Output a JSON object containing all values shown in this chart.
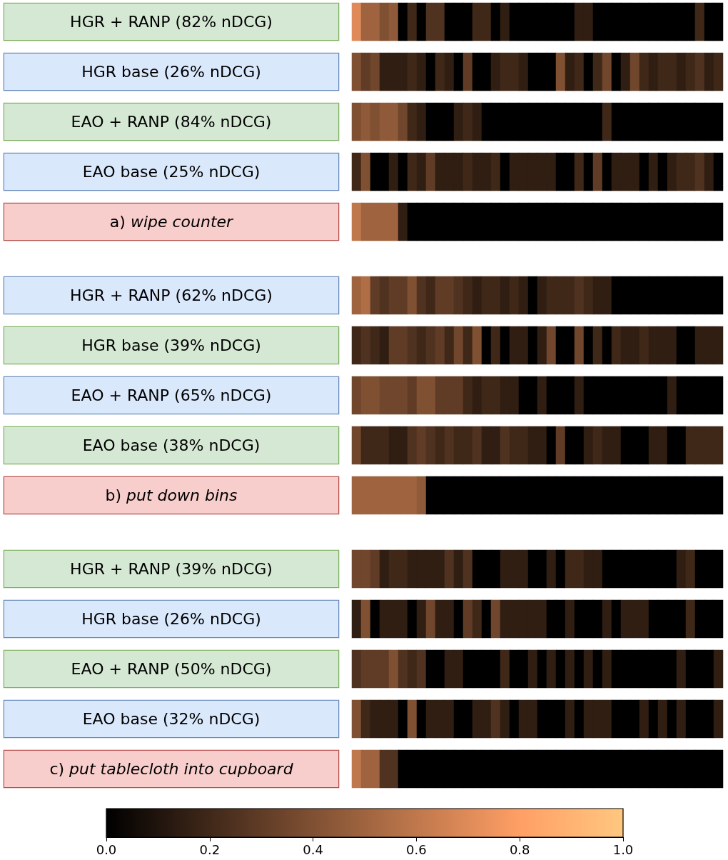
{
  "chart_data": {
    "type": "heatmap",
    "y_categories": [
      "HGR + RANP (82% nDCG)",
      "HGR base (26% nDCG)",
      "EAO + RANP (84% nDCG)",
      "EAO base (25% nDCG)",
      "a) wipe counter",
      "HGR + RANP (62% nDCG)",
      "HGR base (39% nDCG)",
      "EAO + RANP (65% nDCG)",
      "EAO base (38% nDCG)",
      "b) put down bins",
      "HGR + RANP (39% nDCG)",
      "HGR base (26% nDCG)",
      "EAO + RANP (50% nDCG)",
      "EAO base (32% nDCG)",
      "c) put tablecloth into cupboard"
    ],
    "categories": [
      null,
      null,
      null,
      null,
      null,
      null,
      null,
      null,
      null,
      null,
      null,
      null,
      null,
      null,
      null,
      null,
      null,
      null,
      null,
      null,
      null,
      null,
      null,
      null,
      null,
      null,
      null,
      null,
      null,
      null,
      null,
      null,
      null,
      null,
      null,
      null,
      null,
      null,
      null,
      null
    ],
    "clim": [
      0,
      1
    ],
    "cticks": [
      {
        "value": 0,
        "label": "0.0"
      },
      0.2,
      0.4,
      0.6,
      0.8,
      {
        "value": 1,
        "label": "1.0"
      }
    ],
    "cells": [
      [
        0.7,
        0.5,
        0.5,
        0.4,
        0.45,
        0,
        0.2,
        0,
        0.25,
        0.25,
        0,
        0,
        0,
        0.2,
        0.2,
        0,
        0.15,
        0,
        0,
        0,
        0,
        0,
        0,
        0,
        0.15,
        0.15,
        0,
        0,
        0,
        0,
        0,
        0,
        0,
        0,
        0,
        0,
        0,
        0.2,
        0,
        0
      ],
      [
        0.4,
        0.3,
        0.35,
        0.15,
        0.15,
        0.15,
        0.2,
        0.15,
        0,
        0.2,
        0.15,
        0,
        0.3,
        0,
        0,
        0.15,
        0.2,
        0.2,
        0.15,
        0,
        0,
        0,
        0.4,
        0.15,
        0.2,
        0,
        0.2,
        0.35,
        0,
        0.15,
        0.35,
        0.2,
        0.15,
        0.2,
        0.2,
        0.15,
        0.2,
        0.25,
        0.15,
        0.2
      ],
      [
        0.4,
        0.45,
        0.4,
        0.45,
        0.45,
        0.35,
        0.2,
        0.15,
        0,
        0,
        0,
        0.15,
        0.2,
        0.15,
        0,
        0,
        0,
        0,
        0,
        0,
        0,
        0,
        0,
        0,
        0,
        0,
        0,
        0.2,
        0,
        0,
        0,
        0,
        0,
        0,
        0,
        0,
        0,
        0,
        0,
        0
      ],
      [
        0.2,
        0.4,
        0,
        0,
        0.15,
        0,
        0.2,
        0.15,
        0.3,
        0.15,
        0.15,
        0.15,
        0.2,
        0.15,
        0.15,
        0.2,
        0,
        0.15,
        0.15,
        0.15,
        0.15,
        0.15,
        0,
        0,
        0.2,
        0,
        0.3,
        0,
        0.15,
        0.15,
        0.15,
        0,
        0.15,
        0,
        0.15,
        0.2,
        0.2,
        0.25,
        0.15,
        0
      ],
      [
        0.6,
        0.5,
        0.5,
        0.5,
        0.5,
        0.15,
        0,
        0,
        0,
        0,
        0,
        0,
        0,
        0,
        0,
        0,
        0,
        0,
        0,
        0,
        0,
        0,
        0,
        0,
        0,
        0,
        0,
        0,
        0,
        0,
        0,
        0,
        0,
        0,
        0,
        0,
        0,
        0,
        0,
        0
      ],
      [
        0.5,
        0.55,
        0.3,
        0.25,
        0.3,
        0.3,
        0.4,
        0.25,
        0.2,
        0.3,
        0.3,
        0.25,
        0.2,
        0.15,
        0.2,
        0.2,
        0.15,
        0.2,
        0.15,
        0,
        0.15,
        0.2,
        0.2,
        0.2,
        0.25,
        0.2,
        0.15,
        0.15,
        0,
        0,
        0,
        0,
        0,
        0,
        0,
        0,
        0,
        0,
        0,
        0
      ],
      [
        0.2,
        0.25,
        0.2,
        0.15,
        0.3,
        0.3,
        0.25,
        0.2,
        0.25,
        0.3,
        0.2,
        0.35,
        0.2,
        0.4,
        0,
        0.2,
        0,
        0.15,
        0.15,
        0,
        0.15,
        0.35,
        0,
        0,
        0.35,
        0,
        0.2,
        0,
        0.2,
        0.15,
        0.15,
        0.2,
        0.15,
        0.15,
        0.15,
        0,
        0,
        0.15,
        0.15,
        0.15
      ],
      [
        0.35,
        0.4,
        0.4,
        0.35,
        0.35,
        0.35,
        0.3,
        0.4,
        0.4,
        0.3,
        0.3,
        0.3,
        0.2,
        0.15,
        0.2,
        0.2,
        0.15,
        0.15,
        0,
        0,
        0.15,
        0,
        0,
        0,
        0.15,
        0,
        0,
        0,
        0,
        0,
        0,
        0,
        0,
        0,
        0.15,
        0,
        0,
        0,
        0,
        0
      ],
      [
        0.35,
        0.2,
        0.2,
        0.2,
        0.15,
        0.15,
        0.25,
        0.3,
        0.25,
        0.2,
        0.25,
        0.2,
        0.2,
        0.25,
        0.15,
        0.15,
        0.25,
        0.2,
        0.2,
        0.15,
        0.15,
        0,
        0.3,
        0,
        0,
        0.15,
        0.2,
        0.15,
        0.15,
        0,
        0,
        0,
        0.15,
        0.15,
        0,
        0,
        0.2,
        0.2,
        0.2,
        0.2
      ],
      [
        0.5,
        0.5,
        0.5,
        0.5,
        0.5,
        0.5,
        0.5,
        0.45,
        0,
        0,
        0,
        0,
        0,
        0,
        0,
        0,
        0,
        0,
        0,
        0,
        0,
        0,
        0,
        0,
        0,
        0,
        0,
        0,
        0,
        0,
        0,
        0,
        0,
        0,
        0,
        0,
        0,
        0,
        0,
        0
      ],
      [
        0.35,
        0.35,
        0.3,
        0.15,
        0.2,
        0.2,
        0.15,
        0.15,
        0.15,
        0.15,
        0.25,
        0.15,
        0.25,
        0,
        0,
        0,
        0.15,
        0.15,
        0.15,
        0,
        0,
        0.15,
        0,
        0.2,
        0.2,
        0.15,
        0.15,
        0,
        0,
        0,
        0,
        0,
        0,
        0,
        0,
        0.15,
        0.2,
        0,
        0,
        0
      ],
      [
        0.15,
        0.4,
        0,
        0.15,
        0.15,
        0.15,
        0,
        0.15,
        0.35,
        0.15,
        0.15,
        0,
        0.3,
        0.2,
        0,
        0.35,
        0.15,
        0.15,
        0.15,
        0.15,
        0.15,
        0,
        0,
        0.15,
        0,
        0,
        0,
        0.15,
        0,
        0.15,
        0.15,
        0.15,
        0,
        0,
        0,
        0,
        0.2,
        0,
        0,
        0
      ],
      [
        0.25,
        0.3,
        0.3,
        0.3,
        0.4,
        0.25,
        0.2,
        0.25,
        0,
        0,
        0.15,
        0.15,
        0,
        0,
        0,
        0,
        0.2,
        0,
        0,
        0.15,
        0,
        0.15,
        0,
        0.15,
        0,
        0.15,
        0,
        0.15,
        0,
        0,
        0,
        0,
        0,
        0,
        0,
        0.15,
        0,
        0,
        0,
        0.15
      ],
      [
        0.4,
        0.2,
        0.15,
        0.15,
        0.15,
        0,
        0.4,
        0,
        0.15,
        0.15,
        0.15,
        0,
        0,
        0.15,
        0.15,
        0.25,
        0.15,
        0,
        0.15,
        0.15,
        0,
        0,
        0,
        0.15,
        0,
        0.15,
        0.15,
        0.15,
        0,
        0,
        0,
        0.15,
        0,
        0.15,
        0,
        0.15,
        0,
        0,
        0,
        0.15
      ],
      [
        0.6,
        0.5,
        0.5,
        0.25,
        0.25,
        0,
        0,
        0,
        0,
        0,
        0,
        0,
        0,
        0,
        0,
        0,
        0,
        0,
        0,
        0,
        0,
        0,
        0,
        0,
        0,
        0,
        0,
        0,
        0,
        0,
        0,
        0,
        0,
        0,
        0,
        0,
        0,
        0,
        0,
        0
      ]
    ]
  }
}
